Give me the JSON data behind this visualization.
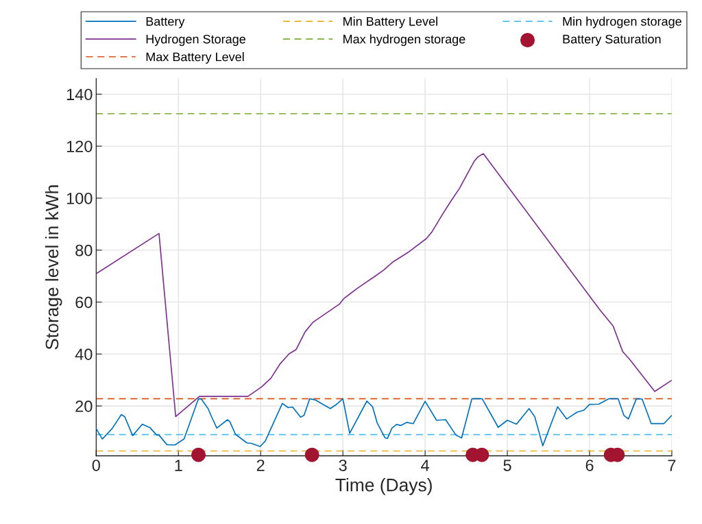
{
  "chart_data": {
    "type": "line",
    "xlabel": "Time (Days)",
    "ylabel": "Storage level in kWh",
    "xlim": [
      0,
      7
    ],
    "xticks": [
      0,
      1,
      2,
      3,
      4,
      5,
      6,
      7
    ],
    "ylim": [
      0.8,
      146
    ],
    "yticks": [
      20,
      40,
      60,
      80,
      100,
      120,
      140
    ],
    "grid": true,
    "legend": "top",
    "line_style": "solid",
    "marker": "none",
    "series": [
      {
        "name": "Battery",
        "color": "#0072bd",
        "x": [
          0,
          0.075,
          0.194,
          0.306,
          0.347,
          0.444,
          0.561,
          0.653,
          0.736,
          0.764,
          0.861,
          0.958,
          1.014,
          1.069,
          1.244,
          1.278,
          1.361,
          1.403,
          1.467,
          1.597,
          1.625,
          1.694,
          1.833,
          1.889,
          1.994,
          2.056,
          2.264,
          2.333,
          2.389,
          2.486,
          2.528,
          2.597,
          2.667,
          2.847,
          2.917,
          3.0,
          3.083,
          3.292,
          3.361,
          3.417,
          3.514,
          3.542,
          3.597,
          3.653,
          3.708,
          3.778,
          3.856,
          4.0,
          4.139,
          4.25,
          4.375,
          4.444,
          4.569,
          4.694,
          4.889,
          5.0,
          5.111,
          5.264,
          5.333,
          5.431,
          5.611,
          5.722,
          5.847,
          5.931,
          6.0,
          6.111,
          6.236,
          6.347,
          6.417,
          6.472,
          6.569,
          6.639,
          6.75,
          6.903,
          7.0
        ],
        "values": [
          11.3,
          7.3,
          11.3,
          16.7,
          15.9,
          8.6,
          13.0,
          11.7,
          8.8,
          8.8,
          5.1,
          5.0,
          6.2,
          7.3,
          22.8,
          22.7,
          19.0,
          15.9,
          11.5,
          14.7,
          14.0,
          9.1,
          5.8,
          5.6,
          4.4,
          6.5,
          21.0,
          19.4,
          19.6,
          15.7,
          16.4,
          22.8,
          22.3,
          19.0,
          20.5,
          22.8,
          9.5,
          21.9,
          19.7,
          13.5,
          7.7,
          7.5,
          11.5,
          12.9,
          12.5,
          13.7,
          13.2,
          21.8,
          14.5,
          14.7,
          8.8,
          7.7,
          22.8,
          22.8,
          11.8,
          14.5,
          13.0,
          19.0,
          15.9,
          4.7,
          19.7,
          15.0,
          17.6,
          18.4,
          20.6,
          20.7,
          22.8,
          22.8,
          16.4,
          15.0,
          22.8,
          22.7,
          13.2,
          13.2,
          16.4
        ]
      },
      {
        "name": "Hydrogen Storage",
        "color": "#7e2f8e",
        "x": [
          0,
          0.764,
          0.967,
          1.256,
          1.847,
          2.014,
          2.125,
          2.236,
          2.347,
          2.431,
          2.542,
          2.639,
          2.958,
          3.014,
          3.167,
          3.403,
          3.5,
          3.611,
          3.792,
          4.014,
          4.083,
          4.208,
          4.319,
          4.417,
          4.597,
          4.644,
          4.708,
          6.0,
          6.125,
          6.286,
          6.403,
          6.486,
          6.792,
          6.994
        ],
        "values": [
          70.9,
          86.4,
          15.9,
          23.7,
          23.7,
          27.4,
          30.7,
          36.2,
          40.1,
          41.7,
          48.6,
          52.3,
          59.2,
          61.4,
          65.1,
          70.2,
          72.4,
          75.5,
          79.1,
          84.4,
          87.0,
          93.6,
          99.1,
          103.7,
          114.2,
          115.9,
          117.1,
          62.3,
          57.0,
          50.8,
          40.9,
          38.0,
          25.6,
          29.8
        ]
      },
      {
        "name": "Battery Saturation",
        "type": "scatter",
        "marker": "circle",
        "color": "#a2142f",
        "x": [
          1.244,
          2.625,
          4.58,
          4.69,
          6.26,
          6.34
        ],
        "values": [
          1.2,
          1.2,
          1.2,
          1.2,
          1.2,
          1.2
        ]
      }
    ],
    "ref_lines": [
      {
        "axis": "y",
        "value": 22.8,
        "label": "Max Battery Level",
        "color": "#d95319",
        "line_style": "dashed"
      },
      {
        "axis": "y",
        "value": 2.7,
        "label": "Min Battery Level",
        "color": "#edb120",
        "line_style": "dashed"
      },
      {
        "axis": "y",
        "value": 132.5,
        "label": "Max hydrogen storage",
        "color": "#77ac30",
        "line_style": "dashed"
      },
      {
        "axis": "y",
        "value": 9.0,
        "label": "Min hydrogen storage",
        "color": "#4dbeee",
        "line_style": "dashed"
      }
    ]
  }
}
